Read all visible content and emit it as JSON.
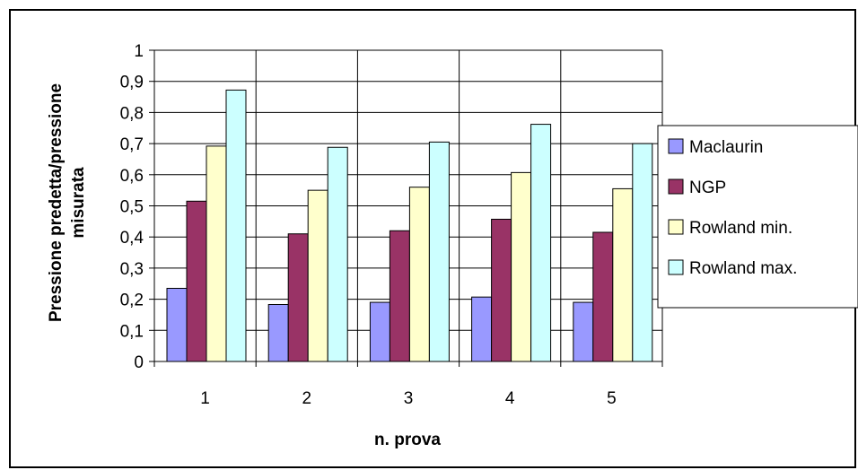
{
  "chart_data": {
    "type": "bar",
    "title": "",
    "xlabel": "n. prova",
    "ylabel_lines": [
      "Pressione predetta/pressione",
      "misurata"
    ],
    "categories": [
      "1",
      "2",
      "3",
      "4",
      "5"
    ],
    "y_ticks": [
      "0",
      "0,1",
      "0,2",
      "0,3",
      "0,4",
      "0,5",
      "0,6",
      "0,7",
      "0,8",
      "0,9",
      "1"
    ],
    "ylim": [
      0,
      1
    ],
    "y_step": 0.1,
    "grid": true,
    "legend_position": "right",
    "series": [
      {
        "name": "Maclaurin",
        "color": "#9999FF",
        "values": [
          0.235,
          0.183,
          0.19,
          0.207,
          0.19
        ]
      },
      {
        "name": "NGP",
        "color": "#993366",
        "values": [
          0.515,
          0.41,
          0.42,
          0.457,
          0.415
        ]
      },
      {
        "name": "Rowland min.",
        "color": "#FFFFCC",
        "values": [
          0.692,
          0.55,
          0.56,
          0.607,
          0.555
        ]
      },
      {
        "name": "Rowland max.",
        "color": "#CCFFFF",
        "values": [
          0.872,
          0.688,
          0.705,
          0.762,
          0.7
        ]
      }
    ]
  }
}
